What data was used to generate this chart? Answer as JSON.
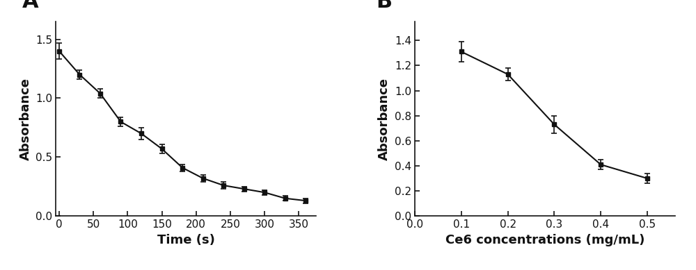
{
  "panel_A": {
    "x": [
      0,
      30,
      60,
      90,
      120,
      150,
      180,
      210,
      240,
      270,
      300,
      330,
      360
    ],
    "y": [
      1.4,
      1.2,
      1.04,
      0.8,
      0.7,
      0.57,
      0.41,
      0.32,
      0.26,
      0.23,
      0.2,
      0.15,
      0.13
    ],
    "yerr": [
      0.07,
      0.04,
      0.04,
      0.04,
      0.05,
      0.04,
      0.03,
      0.03,
      0.03,
      0.02,
      0.02,
      0.02,
      0.02
    ],
    "xlabel": "Time (s)",
    "ylabel": "Absorbance",
    "label": "A",
    "xlim": [
      -5,
      375
    ],
    "ylim": [
      0.0,
      1.65
    ],
    "xticks": [
      0,
      50,
      100,
      150,
      200,
      250,
      300,
      350
    ],
    "yticks": [
      0.0,
      0.5,
      1.0,
      1.5
    ]
  },
  "panel_B": {
    "x": [
      0.1,
      0.2,
      0.3,
      0.4,
      0.5
    ],
    "y": [
      1.31,
      1.13,
      0.73,
      0.41,
      0.3
    ],
    "yerr": [
      0.08,
      0.05,
      0.07,
      0.04,
      0.04
    ],
    "xlabel": "Ce6 concentrations (mg/mL)",
    "ylabel": "Absorbance",
    "label": "B",
    "xlim": [
      0.0,
      0.56
    ],
    "ylim": [
      0.0,
      1.55
    ],
    "xticks": [
      0.0,
      0.1,
      0.2,
      0.3,
      0.4,
      0.5
    ],
    "yticks": [
      0.0,
      0.2,
      0.4,
      0.6,
      0.8,
      1.0,
      1.2,
      1.4
    ]
  },
  "line_color": "#111111",
  "marker": "s",
  "marker_size": 5,
  "marker_color": "#111111",
  "line_width": 1.5,
  "cap_size": 3,
  "label_fontsize": 13,
  "tick_fontsize": 11,
  "panel_label_fontsize": 22,
  "font_family": "DejaVu Sans"
}
